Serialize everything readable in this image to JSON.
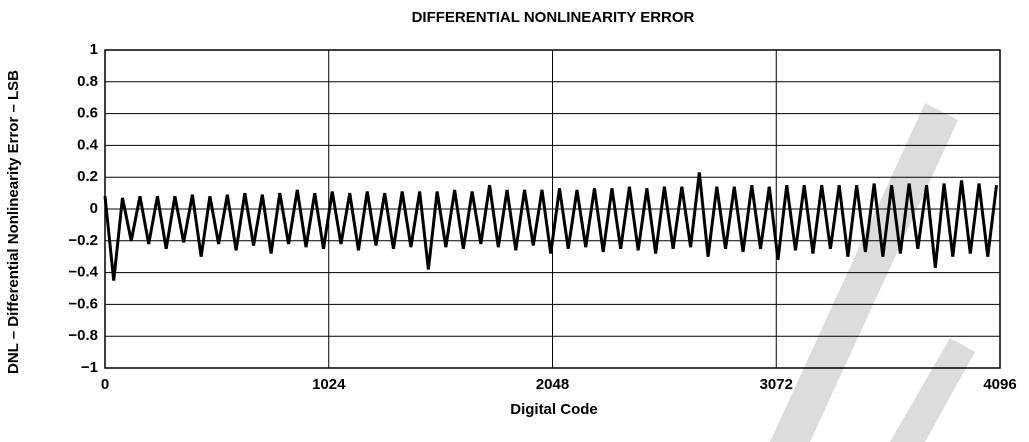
{
  "chart_data": {
    "type": "line",
    "title": "DIFFERENTIAL NONLINEARITY ERROR",
    "x_label": "Digital Code",
    "y_label": "DNL – Differential Nonlinearity Error – LSB",
    "xlim": [
      0,
      4096
    ],
    "xticks": [
      0,
      1024,
      2048,
      3072,
      4096
    ],
    "ylim": [
      -1,
      1
    ],
    "yticks": [
      {
        "value": -1,
        "label": "−1"
      },
      {
        "value": -0.8,
        "label": "−0.8"
      },
      {
        "value": -0.6,
        "label": "−0.6"
      },
      {
        "value": -0.4,
        "label": "−0.4"
      },
      {
        "value": -0.2,
        "label": "−0.2"
      },
      0,
      0.2,
      0.4,
      0.6,
      0.8,
      1
    ],
    "grid": true,
    "color": "#000000",
    "x": [
      0,
      40,
      80,
      120,
      160,
      200,
      240,
      280,
      320,
      360,
      400,
      440,
      480,
      520,
      560,
      600,
      640,
      680,
      720,
      760,
      800,
      840,
      880,
      920,
      960,
      1000,
      1040,
      1080,
      1120,
      1160,
      1200,
      1240,
      1280,
      1320,
      1360,
      1400,
      1440,
      1480,
      1520,
      1560,
      1600,
      1640,
      1680,
      1720,
      1760,
      1800,
      1840,
      1880,
      1920,
      1960,
      2000,
      2040,
      2080,
      2120,
      2160,
      2200,
      2240,
      2280,
      2320,
      2360,
      2400,
      2440,
      2480,
      2520,
      2560,
      2600,
      2640,
      2680,
      2720,
      2760,
      2800,
      2840,
      2880,
      2920,
      2960,
      3000,
      3040,
      3080,
      3120,
      3160,
      3200,
      3240,
      3280,
      3320,
      3360,
      3400,
      3440,
      3480,
      3520,
      3560,
      3600,
      3640,
      3680,
      3720,
      3760,
      3800,
      3840,
      3880,
      3920,
      3960,
      4000,
      4040,
      4080
    ],
    "values": [
      0.08,
      -0.45,
      0.07,
      -0.2,
      0.08,
      -0.22,
      0.08,
      -0.25,
      0.08,
      -0.21,
      0.09,
      -0.3,
      0.08,
      -0.22,
      0.09,
      -0.26,
      0.1,
      -0.23,
      0.09,
      -0.28,
      0.1,
      -0.22,
      0.12,
      -0.24,
      0.1,
      -0.25,
      0.11,
      -0.22,
      0.1,
      -0.26,
      0.11,
      -0.23,
      0.1,
      -0.25,
      0.11,
      -0.24,
      0.11,
      -0.38,
      0.11,
      -0.24,
      0.12,
      -0.25,
      0.11,
      -0.22,
      0.15,
      -0.24,
      0.12,
      -0.26,
      0.12,
      -0.23,
      0.12,
      -0.28,
      0.13,
      -0.25,
      0.12,
      -0.24,
      0.13,
      -0.27,
      0.13,
      -0.25,
      0.14,
      -0.26,
      0.13,
      -0.28,
      0.14,
      -0.25,
      0.14,
      -0.24,
      0.23,
      -0.3,
      0.14,
      -0.25,
      0.14,
      -0.27,
      0.15,
      -0.25,
      0.14,
      -0.32,
      0.15,
      -0.26,
      0.15,
      -0.28,
      0.15,
      -0.25,
      0.15,
      -0.3,
      0.15,
      -0.27,
      0.16,
      -0.3,
      0.15,
      -0.28,
      0.16,
      -0.25,
      0.15,
      -0.37,
      0.16,
      -0.3,
      0.18,
      -0.28,
      0.16,
      -0.3,
      0.15
    ]
  }
}
